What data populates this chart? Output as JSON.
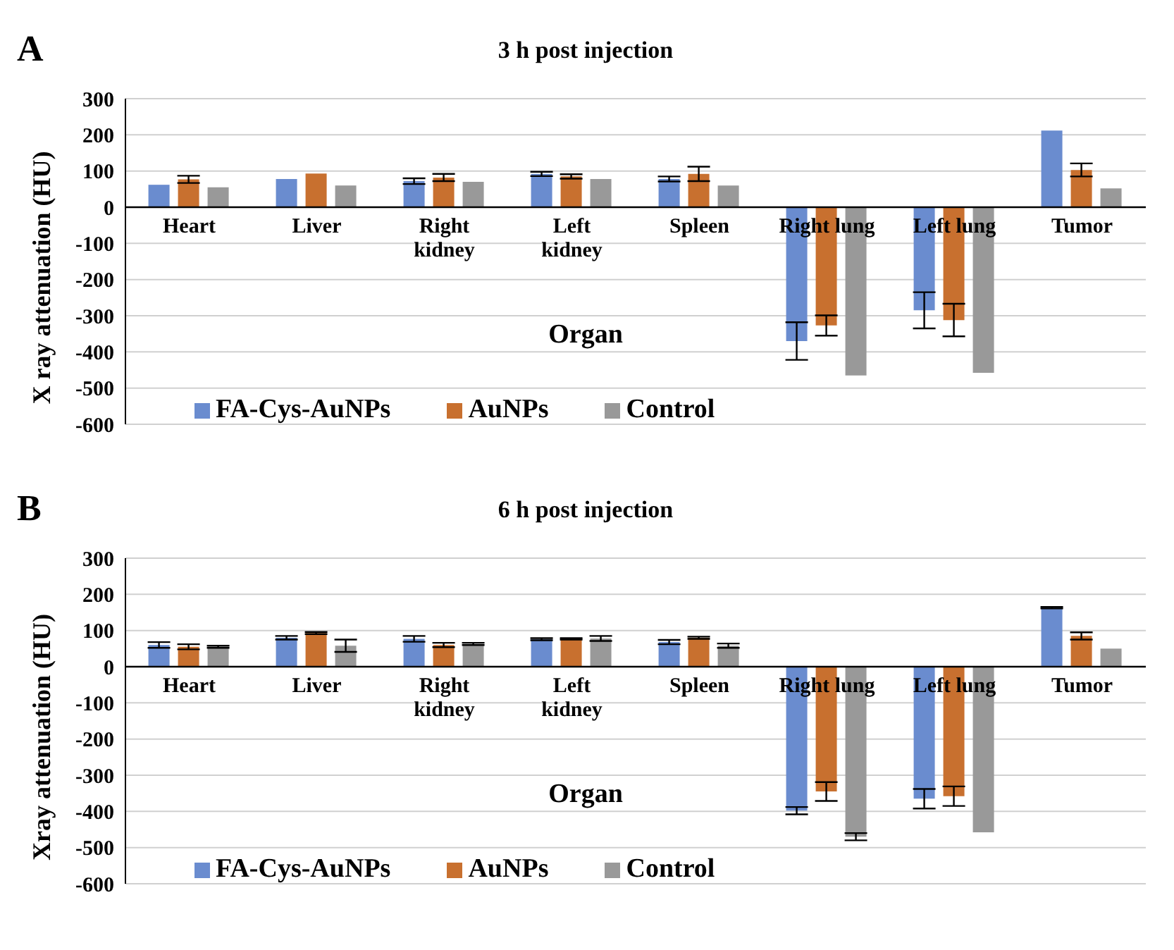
{
  "chart_data": [
    {
      "type": "bar",
      "title": "3 h post injection",
      "xlabel": "Organ",
      "ylabel": "X ray attenuation (HU)",
      "annotations": [
        "A"
      ],
      "categories": [
        "Heart",
        "Liver",
        "Right kidney",
        "Left kidney",
        "Spleen",
        "Right lung",
        "Left lung",
        "Tumor"
      ],
      "series": [
        {
          "name": "FA-Cys-AuNPs",
          "color": "#6a8ccf",
          "values": [
            62,
            78,
            72,
            92,
            78,
            -370,
            -285,
            212
          ],
          "errors": [
            null,
            null,
            8,
            6,
            7,
            52,
            50,
            null
          ]
        },
        {
          "name": "AuNPs",
          "color": "#c8702f",
          "values": [
            77,
            93,
            82,
            85,
            92,
            -327,
            -312,
            103
          ],
          "errors": [
            10,
            null,
            10,
            6,
            20,
            28,
            45,
            18
          ]
        },
        {
          "name": "Control",
          "color": "#999999",
          "values": [
            55,
            60,
            70,
            78,
            60,
            -465,
            -458,
            52
          ],
          "errors": [
            null,
            null,
            null,
            null,
            null,
            null,
            null,
            null
          ]
        }
      ],
      "ylim": [
        -600,
        300
      ],
      "yticks": [
        -600,
        -500,
        -400,
        -300,
        -200,
        -100,
        0,
        100,
        200,
        300
      ],
      "grid": "y",
      "legend": "bottom left"
    },
    {
      "type": "bar",
      "title": "6 h post injection",
      "xlabel": "Organ",
      "ylabel": "Xray attenuation (HU)",
      "annotations": [
        "B"
      ],
      "categories": [
        "Heart",
        "Liver",
        "Right kidney",
        "Left kidney",
        "Spleen",
        "Right lung",
        "Left lung",
        "Tumor"
      ],
      "series": [
        {
          "name": "FA-Cys-AuNPs",
          "color": "#6a8ccf",
          "values": [
            60,
            80,
            77,
            76,
            68,
            -398,
            -365,
            163
          ],
          "errors": [
            8,
            5,
            8,
            3,
            6,
            10,
            27,
            2
          ]
        },
        {
          "name": "AuNPs",
          "color": "#c8702f",
          "values": [
            55,
            93,
            60,
            77,
            80,
            -345,
            -358,
            85
          ],
          "errors": [
            7,
            3,
            6,
            2,
            3,
            26,
            27,
            10
          ]
        },
        {
          "name": "Control",
          "color": "#999999",
          "values": [
            55,
            58,
            63,
            78,
            58,
            -470,
            -458,
            50
          ],
          "errors": [
            3,
            17,
            3,
            7,
            6,
            10,
            null,
            null
          ]
        }
      ],
      "ylim": [
        -600,
        300
      ],
      "yticks": [
        -600,
        -500,
        -400,
        -300,
        -200,
        -100,
        0,
        100,
        200,
        300
      ],
      "grid": "y",
      "legend": "bottom left"
    }
  ]
}
